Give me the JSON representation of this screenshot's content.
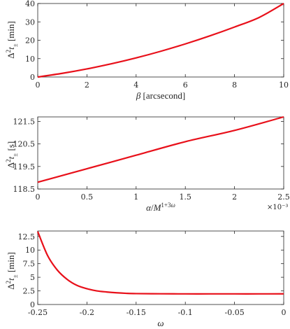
{
  "chart_data": [
    {
      "type": "line",
      "title": "",
      "xlabel": "β [arcsecond]",
      "ylabel": "Δ²t± [min]",
      "xlim": [
        0,
        10
      ],
      "ylim": [
        0,
        40
      ],
      "xticks": [
        0,
        2,
        4,
        6,
        8,
        10
      ],
      "yticks": [
        0,
        10,
        20,
        30,
        40
      ],
      "xtick_labels": [
        "0",
        "2",
        "4",
        "6",
        "8",
        "10"
      ],
      "ytick_labels": [
        "0",
        "10",
        "20",
        "30",
        "40"
      ],
      "series": [
        {
          "color": "#e8101a",
          "x": [
            0,
            1,
            2,
            3,
            4,
            5,
            6,
            7,
            8,
            9,
            10
          ],
          "y": [
            0.0,
            2.0,
            4.4,
            7.2,
            10.4,
            14.0,
            18.0,
            22.4,
            27.2,
            32.4,
            40.0
          ]
        }
      ]
    },
    {
      "type": "line",
      "title": "",
      "xlabel": "α/M^(1+3ω)",
      "ylabel": "Δ²t± [s]",
      "xlim": [
        0,
        2.5
      ],
      "ylim": [
        118.5,
        121.7
      ],
      "xticks": [
        0,
        0.5,
        1,
        1.5,
        2,
        2.5
      ],
      "yticks": [
        118.5,
        119.5,
        120.5,
        121.5
      ],
      "xtick_labels": [
        "0",
        "0.5",
        "1",
        "1.5",
        "2",
        "2.5"
      ],
      "ytick_labels": [
        "118.5",
        "119.5",
        "120.5",
        "121.5"
      ],
      "x_exponent_label": "×10⁻³",
      "series": [
        {
          "color": "#e8101a",
          "x": [
            0,
            0.5,
            1,
            1.5,
            2,
            2.5
          ],
          "y": [
            118.8,
            119.4,
            120.0,
            120.6,
            121.1,
            121.7
          ]
        }
      ]
    },
    {
      "type": "line",
      "title": "",
      "xlabel": "ω",
      "ylabel": "Δ²t± [min]",
      "xlim": [
        -0.25,
        0
      ],
      "ylim": [
        0,
        13.5
      ],
      "xticks": [
        -0.25,
        -0.2,
        -0.15,
        -0.1,
        -0.05,
        0
      ],
      "yticks": [
        0,
        2.5,
        5,
        7.5,
        10,
        12.5
      ],
      "xtick_labels": [
        "-0.25",
        "-0.2",
        "-0.15",
        "-0.1",
        "-0.05",
        "0"
      ],
      "ytick_labels": [
        "0",
        "2.5",
        "5",
        "7.5",
        "10",
        "12.5"
      ],
      "series": [
        {
          "color": "#e8101a",
          "x": [
            -0.25,
            -0.24,
            -0.23,
            -0.22,
            -0.21,
            -0.2,
            -0.19,
            -0.18,
            -0.17,
            -0.16,
            -0.15,
            -0.125,
            -0.1,
            -0.075,
            -0.05,
            -0.025,
            0
          ],
          "y": [
            13.4,
            9.0,
            6.3,
            4.6,
            3.5,
            2.9,
            2.5,
            2.3,
            2.15,
            2.05,
            2.0,
            1.97,
            1.95,
            1.95,
            1.95,
            1.95,
            1.96
          ]
        }
      ]
    }
  ]
}
